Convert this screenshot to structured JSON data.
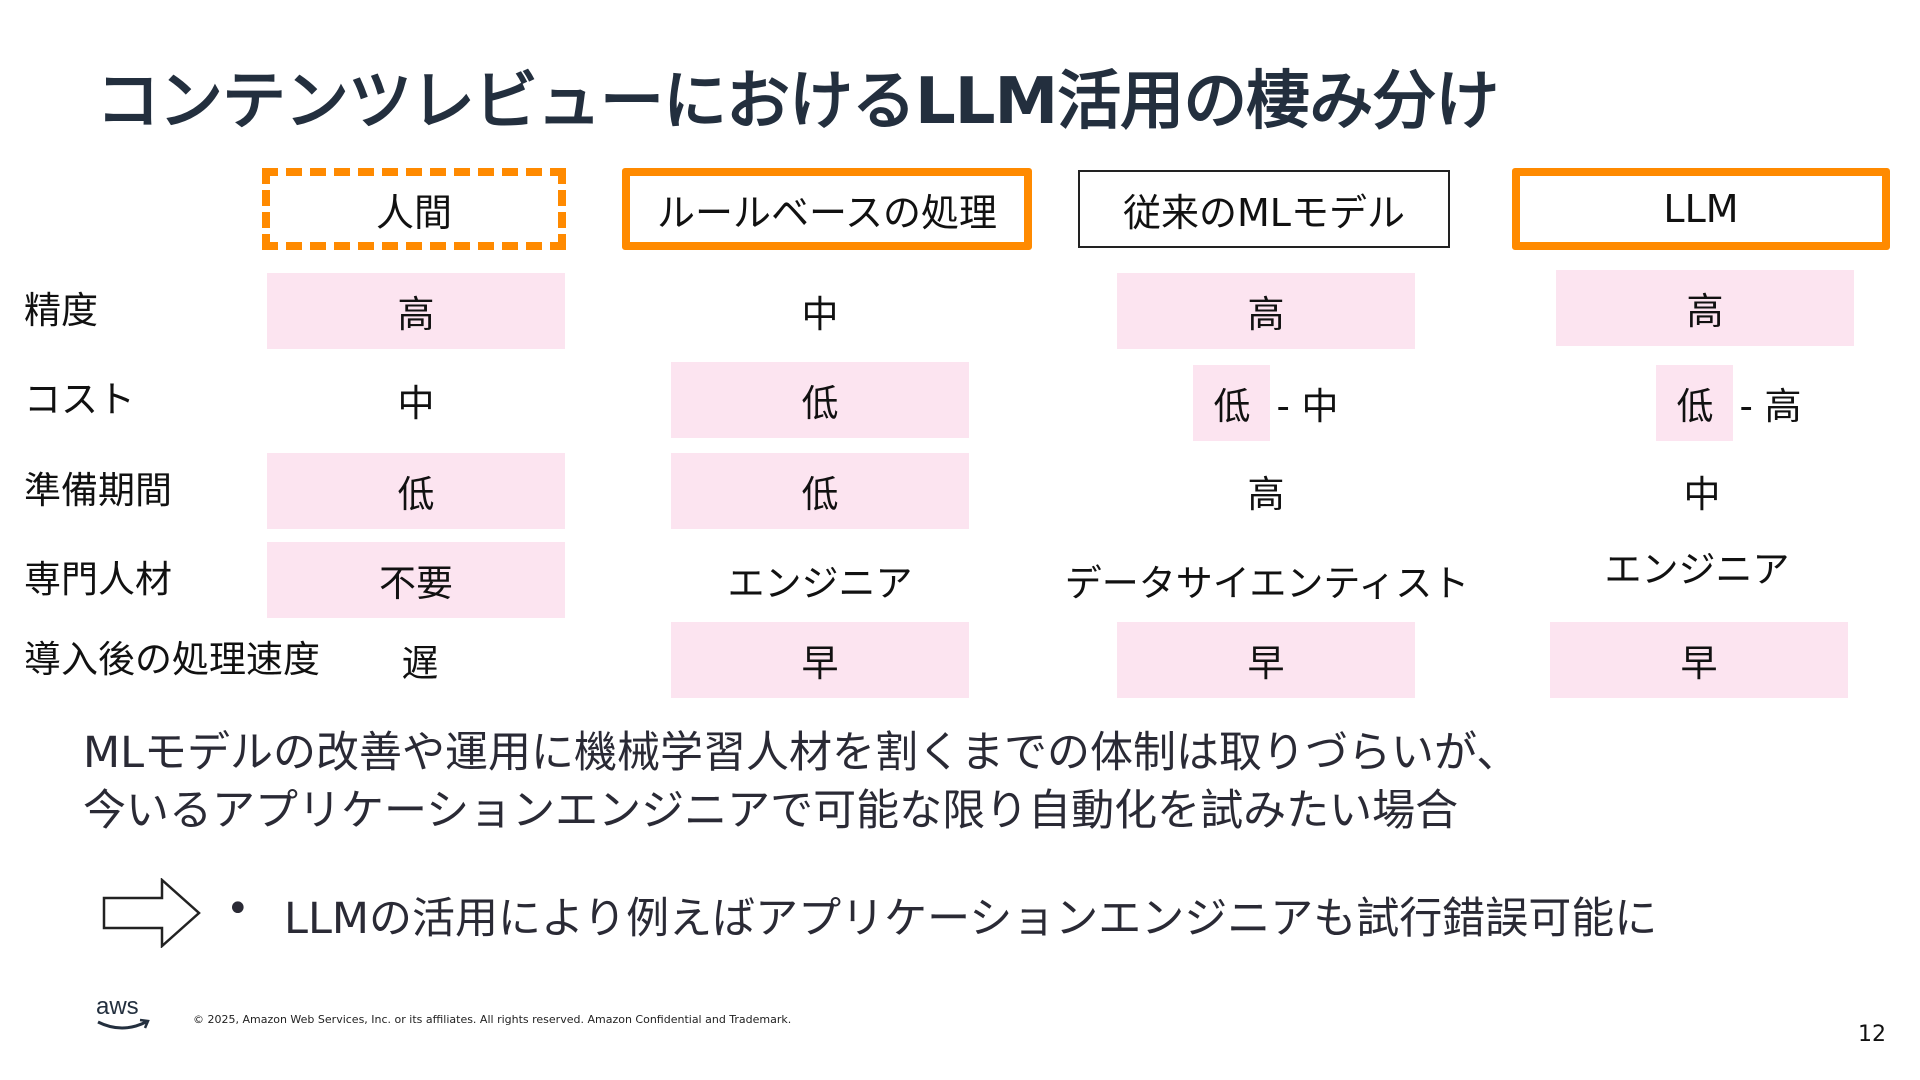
{
  "title": "コンテンツレビューにおけるLLM活用の棲み分け",
  "columns": [
    {
      "label": "人間"
    },
    {
      "label": "ルールベースの処理"
    },
    {
      "label": "従来のMLモデル"
    },
    {
      "label": "LLM"
    }
  ],
  "rows": [
    {
      "label": "精度",
      "cells": [
        {
          "value": "高",
          "highlight": true
        },
        {
          "value": "中",
          "highlight": false
        },
        {
          "value": "高",
          "highlight": true
        },
        {
          "value": "高",
          "highlight": true
        }
      ]
    },
    {
      "label": "コスト",
      "cells": [
        {
          "value": "中",
          "highlight": false
        },
        {
          "value": "低",
          "highlight": true
        },
        {
          "value": "低",
          "suffix": "- 中",
          "highlight": "partial"
        },
        {
          "value": "低",
          "suffix": "- 高",
          "highlight": "partial"
        }
      ]
    },
    {
      "label": "準備期間",
      "cells": [
        {
          "value": "低",
          "highlight": true
        },
        {
          "value": "低",
          "highlight": true
        },
        {
          "value": "高",
          "highlight": false
        },
        {
          "value": "中",
          "highlight": false
        }
      ]
    },
    {
      "label": "専門人材",
      "cells": [
        {
          "value": "不要",
          "highlight": true
        },
        {
          "value": "エンジニア",
          "highlight": false
        },
        {
          "value": "データサイエンティスト",
          "highlight": false
        },
        {
          "value": "エンジニア",
          "highlight": false
        }
      ]
    },
    {
      "label": "導入後の処理速度",
      "cells": [
        {
          "value": "遅",
          "highlight": false
        },
        {
          "value": "早",
          "highlight": true
        },
        {
          "value": "早",
          "highlight": true
        },
        {
          "value": "早",
          "highlight": true
        }
      ]
    }
  ],
  "description": [
    "MLモデルの改善や運用に機械学習人材を割くまでの体制は取りづらいが、",
    "今いるアプリケーションエンジニアで可能な限り自動化を試みたい場合"
  ],
  "bullet": "•",
  "conclusion": "LLMの活用により例えばアプリケーションエンジニアも試行錯誤可能に",
  "footer": {
    "logo": "aws",
    "copyright": "© 2025, Amazon Web Services, Inc. or its affiliates. All rights reserved. Amazon Confidential and Trademark.",
    "page_number": "12"
  },
  "colors": {
    "accent": "#ff8a00",
    "highlight": "#fce4f0",
    "title": "#232f3e"
  }
}
